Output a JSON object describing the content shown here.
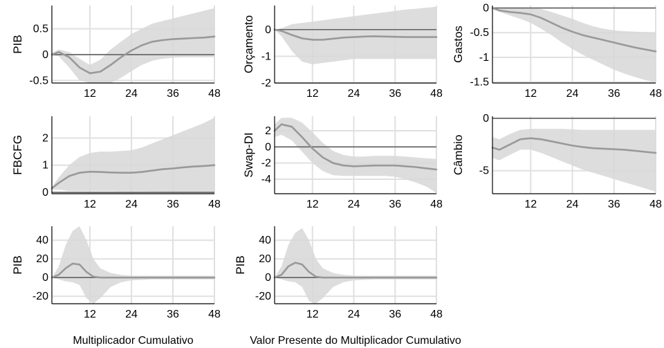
{
  "theme": {
    "band_color": "#d7d7d7",
    "line_color": "#999999",
    "zero_color": "#606060",
    "grid_color": "#e0e0e0"
  },
  "chart_data": [
    {
      "type": "area",
      "ylabel": "PIB",
      "xlim": [
        1,
        48
      ],
      "ylim": [
        -0.55,
        0.95
      ],
      "xticks": [
        12,
        24,
        36,
        48
      ],
      "yticks": [
        -0.5,
        0,
        0.5
      ],
      "ytick_labels": [
        "-0.5",
        "0",
        "0.5"
      ],
      "grid": true,
      "zero_line": true,
      "x": [
        1,
        3,
        6,
        9,
        12,
        15,
        18,
        21,
        24,
        27,
        30,
        33,
        36,
        39,
        42,
        45,
        48
      ],
      "median": [
        0.0,
        0.05,
        -0.05,
        -0.25,
        -0.36,
        -0.33,
        -0.2,
        -0.05,
        0.08,
        0.18,
        0.25,
        0.28,
        0.3,
        0.31,
        0.32,
        0.33,
        0.35
      ],
      "lower": [
        -0.02,
        -0.03,
        -0.25,
        -0.5,
        -0.6,
        -0.6,
        -0.55,
        -0.45,
        -0.32,
        -0.2,
        -0.12,
        -0.08,
        -0.06,
        -0.05,
        -0.05,
        -0.05,
        -0.05
      ],
      "upper": [
        0.02,
        0.1,
        0.05,
        -0.08,
        -0.2,
        -0.1,
        0.1,
        0.25,
        0.4,
        0.5,
        0.6,
        0.65,
        0.7,
        0.75,
        0.8,
        0.85,
        0.9
      ]
    },
    {
      "type": "area",
      "ylabel": "Orçamento",
      "xlim": [
        1,
        48
      ],
      "ylim": [
        -2,
        0.9
      ],
      "xticks": [
        12,
        24,
        36,
        48
      ],
      "yticks": [
        -2,
        -1,
        0
      ],
      "ytick_labels": [
        "-2",
        "-1",
        "0"
      ],
      "grid": true,
      "zero_line": true,
      "x": [
        1,
        3,
        6,
        9,
        12,
        15,
        18,
        21,
        24,
        27,
        30,
        33,
        36,
        39,
        42,
        45,
        48
      ],
      "median": [
        0,
        -0.05,
        -0.2,
        -0.33,
        -0.38,
        -0.38,
        -0.34,
        -0.3,
        -0.28,
        -0.26,
        -0.25,
        -0.26,
        -0.27,
        -0.28,
        -0.28,
        -0.28,
        -0.28
      ],
      "lower": [
        0,
        -0.25,
        -0.8,
        -1.2,
        -1.3,
        -1.25,
        -1.2,
        -1.15,
        -1.1,
        -1.1,
        -1.1,
        -1.1,
        -1.1,
        -1.1,
        -1.1,
        -1.1,
        -1.1
      ],
      "upper": [
        0,
        0.05,
        0.2,
        0.25,
        0.3,
        0.35,
        0.4,
        0.45,
        0.5,
        0.55,
        0.6,
        0.65,
        0.7,
        0.75,
        0.78,
        0.82,
        0.85
      ]
    },
    {
      "type": "area",
      "ylabel": "Gastos",
      "xlim": [
        1,
        48
      ],
      "ylim": [
        -1.52,
        0.05
      ],
      "xticks": [
        12,
        24,
        36,
        48
      ],
      "yticks": [
        -1.5,
        -1,
        -0.5,
        0
      ],
      "ytick_labels": [
        "-1.5",
        "-1",
        "-0.5",
        "0"
      ],
      "grid": true,
      "zero_line": true,
      "x": [
        1,
        3,
        6,
        9,
        12,
        15,
        18,
        21,
        24,
        27,
        30,
        33,
        36,
        39,
        42,
        45,
        48
      ],
      "median": [
        0,
        -0.05,
        -0.08,
        -0.1,
        -0.13,
        -0.2,
        -0.3,
        -0.4,
        -0.48,
        -0.55,
        -0.6,
        -0.65,
        -0.7,
        -0.75,
        -0.8,
        -0.84,
        -0.88
      ],
      "lower": [
        0,
        -0.08,
        -0.15,
        -0.22,
        -0.3,
        -0.42,
        -0.55,
        -0.7,
        -0.83,
        -0.95,
        -1.05,
        -1.15,
        -1.25,
        -1.33,
        -1.4,
        -1.46,
        -1.5
      ],
      "upper": [
        0,
        0,
        0,
        0,
        0,
        -0.02,
        -0.08,
        -0.15,
        -0.22,
        -0.3,
        -0.37,
        -0.42,
        -0.45,
        -0.47,
        -0.48,
        -0.49,
        -0.5
      ]
    },
    {
      "type": "area",
      "ylabel": "FBCFG",
      "xlim": [
        1,
        48
      ],
      "ylim": [
        -0.05,
        2.8
      ],
      "xticks": [
        12,
        24,
        36,
        48
      ],
      "yticks": [
        0,
        1,
        2
      ],
      "ytick_labels": [
        "0",
        "1",
        "2"
      ],
      "grid": true,
      "zero_line": true,
      "x": [
        1,
        3,
        6,
        9,
        12,
        15,
        18,
        21,
        24,
        27,
        30,
        33,
        36,
        39,
        42,
        45,
        48
      ],
      "median": [
        0.15,
        0.35,
        0.6,
        0.72,
        0.76,
        0.75,
        0.73,
        0.72,
        0.72,
        0.75,
        0.8,
        0.85,
        0.88,
        0.92,
        0.95,
        0.97,
        1.0
      ],
      "lower": [
        0.1,
        0.1,
        0.05,
        0.05,
        0.05,
        0.05,
        0.05,
        0.04,
        0.04,
        0.04,
        0.03,
        0.03,
        0.02,
        0.02,
        0.01,
        0.0,
        -0.02
      ],
      "upper": [
        0.2,
        0.55,
        1.0,
        1.3,
        1.45,
        1.5,
        1.5,
        1.52,
        1.55,
        1.65,
        1.8,
        1.95,
        2.1,
        2.25,
        2.4,
        2.55,
        2.75
      ]
    },
    {
      "type": "area",
      "ylabel": "Swap-DI",
      "xlim": [
        1,
        48
      ],
      "ylim": [
        -5.8,
        3.8
      ],
      "xticks": [
        12,
        24,
        36,
        48
      ],
      "yticks": [
        -4,
        -2,
        0,
        2
      ],
      "ytick_labels": [
        "-4",
        "-2",
        "0",
        "2"
      ],
      "grid": true,
      "zero_line": true,
      "x": [
        1,
        3,
        6,
        9,
        12,
        15,
        18,
        21,
        24,
        27,
        30,
        33,
        36,
        39,
        42,
        45,
        48
      ],
      "median": [
        2.0,
        2.8,
        2.5,
        1.2,
        -0.2,
        -1.3,
        -2.0,
        -2.3,
        -2.4,
        -2.35,
        -2.3,
        -2.3,
        -2.3,
        -2.4,
        -2.5,
        -2.65,
        -2.8
      ],
      "lower": [
        1.2,
        1.5,
        0.8,
        -0.6,
        -2.0,
        -3.0,
        -3.5,
        -3.6,
        -3.6,
        -3.6,
        -3.6,
        -3.6,
        -3.7,
        -4.0,
        -4.4,
        -4.9,
        -5.7
      ],
      "upper": [
        2.8,
        3.6,
        3.6,
        3.0,
        1.8,
        0.5,
        -0.5,
        -1.0,
        -1.2,
        -1.2,
        -1.1,
        -1.1,
        -1.1,
        -1.2,
        -1.3,
        -1.4,
        -1.5
      ]
    },
    {
      "type": "area",
      "ylabel": "Câmbio",
      "xlim": [
        1,
        48
      ],
      "ylim": [
        -7.2,
        0.2
      ],
      "xticks": [
        12,
        24,
        36,
        48
      ],
      "yticks": [
        -5,
        0
      ],
      "ytick_labels": [
        "-5",
        "0"
      ],
      "grid": true,
      "zero_line": true,
      "x": [
        1,
        3,
        6,
        9,
        12,
        15,
        18,
        21,
        24,
        27,
        30,
        33,
        36,
        39,
        42,
        45,
        48
      ],
      "median": [
        -2.8,
        -3.0,
        -2.5,
        -2.0,
        -1.9,
        -2.0,
        -2.2,
        -2.4,
        -2.6,
        -2.75,
        -2.85,
        -2.9,
        -2.95,
        -3.0,
        -3.1,
        -3.2,
        -3.3
      ],
      "lower": [
        -3.8,
        -4.0,
        -3.5,
        -3.0,
        -3.0,
        -3.3,
        -3.7,
        -4.1,
        -4.5,
        -4.9,
        -5.2,
        -5.5,
        -5.8,
        -6.1,
        -6.4,
        -6.7,
        -7.0
      ],
      "upper": [
        -1.8,
        -2.0,
        -1.5,
        -1.1,
        -1.0,
        -1.0,
        -1.0,
        -1.0,
        -1.05,
        -1.1,
        -1.1,
        -1.1,
        -1.1,
        -1.1,
        -1.1,
        -1.1,
        -1.1
      ]
    },
    {
      "type": "area",
      "ylabel": "PIB",
      "xlabel": "Multiplicador Cumulativo",
      "xlim": [
        1,
        48
      ],
      "ylim": [
        -28,
        55
      ],
      "xticks": [
        12,
        24,
        36,
        48
      ],
      "yticks": [
        -20,
        0,
        20,
        40
      ],
      "ytick_labels": [
        "-20",
        "0",
        "20",
        "40"
      ],
      "grid": true,
      "zero_line": true,
      "x": [
        1,
        3,
        5,
        7,
        9,
        11,
        13,
        15,
        18,
        21,
        24,
        30,
        36,
        42,
        48
      ],
      "median": [
        0,
        3,
        10,
        15,
        14,
        6,
        1,
        0,
        0,
        0,
        0,
        0,
        0,
        0,
        0
      ],
      "lower": [
        0,
        -2,
        -4,
        -5,
        -8,
        -22,
        -28,
        -22,
        -10,
        -5,
        -3,
        -2,
        -2,
        -2,
        -2
      ],
      "upper": [
        0,
        12,
        35,
        50,
        55,
        40,
        20,
        10,
        5,
        3,
        2,
        2,
        2,
        2,
        2
      ]
    },
    {
      "type": "area",
      "ylabel": "PIB",
      "xlabel": "Valor Presente do Multiplicador Cumulativo",
      "xlim": [
        1,
        48
      ],
      "ylim": [
        -28,
        55
      ],
      "xticks": [
        12,
        24,
        36,
        48
      ],
      "yticks": [
        -20,
        0,
        20,
        40
      ],
      "ytick_labels": [
        "-20",
        "0",
        "20",
        "40"
      ],
      "grid": true,
      "zero_line": true,
      "x": [
        1,
        3,
        5,
        7,
        9,
        11,
        13,
        15,
        18,
        21,
        24,
        30,
        36,
        42,
        48
      ],
      "median": [
        0,
        3,
        12,
        16,
        14,
        6,
        1,
        0,
        0,
        0,
        0,
        0,
        0,
        0,
        0
      ],
      "lower": [
        0,
        -2,
        -4,
        -5,
        -10,
        -25,
        -30,
        -22,
        -10,
        -5,
        -3,
        -2,
        -2,
        -2,
        -2
      ],
      "upper": [
        0,
        12,
        35,
        48,
        53,
        40,
        20,
        10,
        5,
        3,
        2,
        2,
        2,
        2,
        2
      ]
    }
  ]
}
